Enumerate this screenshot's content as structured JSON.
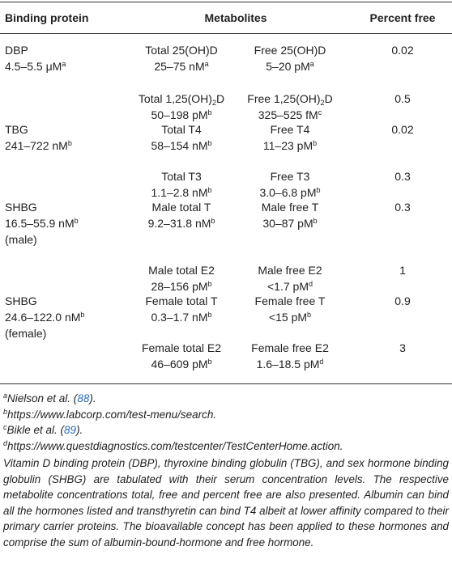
{
  "table": {
    "header": [
      "Binding protein",
      "Metabolites",
      "Percent free"
    ],
    "rows": [
      {
        "protein": [
          [
            "DBP"
          ],
          [
            "4.5–5.5 μM",
            {
              "sup": "a"
            }
          ]
        ],
        "total": [
          [
            "Total 25(OH)D"
          ],
          [
            "25–75 nM",
            {
              "sup": "a"
            }
          ]
        ],
        "free": [
          [
            "Free 25(OH)D"
          ],
          [
            "5–20 pM",
            {
              "sup": "a"
            }
          ]
        ],
        "percent": "0.02"
      },
      {
        "protein": [],
        "total": [
          [
            "Total 1,25(OH)",
            {
              "sub": "2"
            },
            "D"
          ],
          [
            "50–198 pM",
            {
              "sup": "b"
            }
          ]
        ],
        "free": [
          [
            "Free 1,25(OH)",
            {
              "sub": "2"
            },
            "D"
          ],
          [
            "325–525 fM",
            {
              "sup": "c"
            }
          ]
        ],
        "percent": "0.5"
      },
      {
        "protein": [
          [
            "TBG"
          ],
          [
            "241–722 nM",
            {
              "sup": "b"
            }
          ]
        ],
        "total": [
          [
            "Total T4"
          ],
          [
            "58–154 nM",
            {
              "sup": "b"
            }
          ]
        ],
        "free": [
          [
            "Free T4"
          ],
          [
            "11–23 pM",
            {
              "sup": "b"
            }
          ]
        ],
        "percent": "0.02"
      },
      {
        "protein": [],
        "total": [
          [
            "Total T3"
          ],
          [
            "1.1–2.8 nM",
            {
              "sup": "b"
            }
          ]
        ],
        "free": [
          [
            "Free T3"
          ],
          [
            "3.0–6.8 pM",
            {
              "sup": "b"
            }
          ]
        ],
        "percent": "0.3"
      },
      {
        "protein": [
          [
            "SHBG"
          ],
          [
            "16.5–55.9 nM",
            {
              "sup": "b"
            }
          ],
          [
            "(male)"
          ]
        ],
        "total": [
          [
            "Male total T"
          ],
          [
            "9.2–31.8 nM",
            {
              "sup": "b"
            }
          ]
        ],
        "free": [
          [
            "Male free T"
          ],
          [
            "30–87 pM",
            {
              "sup": "b"
            }
          ]
        ],
        "percent": "0.3"
      },
      {
        "protein": [],
        "total": [
          [
            "Male total E2"
          ],
          [
            "28–156 pM",
            {
              "sup": "b"
            }
          ]
        ],
        "free": [
          [
            "Male free E2"
          ],
          [
            "<1.7 pM",
            {
              "sup": "d"
            }
          ]
        ],
        "percent": "1"
      },
      {
        "protein": [
          [
            "SHBG"
          ],
          [
            "24.6–122.0 nM",
            {
              "sup": "b"
            }
          ],
          [
            "(female)"
          ]
        ],
        "total": [
          [
            "Female total T"
          ],
          [
            "0.3–1.7 nM",
            {
              "sup": "b"
            }
          ]
        ],
        "free": [
          [
            "Female free T"
          ],
          [
            "<15 pM",
            {
              "sup": "b"
            }
          ]
        ],
        "percent": "0.9"
      },
      {
        "protein": [],
        "total": [
          [
            "Female total E2"
          ],
          [
            "46–609 pM",
            {
              "sup": "b"
            }
          ]
        ],
        "free": [
          [
            "Female free E2"
          ],
          [
            "1.6–18.5 pM",
            {
              "sup": "d"
            }
          ]
        ],
        "percent": "3"
      }
    ]
  },
  "footnotes": [
    [
      {
        "sup": "a"
      },
      "Nielson et al. (",
      {
        "link": "88"
      },
      ")."
    ],
    [
      {
        "sup": "b"
      },
      "https://www.labcorp.com/test-menu/search."
    ],
    [
      {
        "sup": "c"
      },
      "Bikle et al. (",
      {
        "link": "89"
      },
      ")."
    ],
    [
      {
        "sup": "d"
      },
      "https://www.questdiagnostics.com/testcenter/TestCenterHome.action."
    ]
  ],
  "caption": "Vitamin D binding protein (DBP), thyroxine binding globulin (TBG), and sex hormone binding globulin (SHBG) are tabulated with their serum concentration levels. The respective metabolite concentrations total, free and percent free are also presented. Albumin can bind all the hormones listed and transthyretin can bind T4 albeit at lower affinity compared to their primary carrier proteins. The bioavailable concept has been applied to these hormones and comprise the sum of albumin-bound-hormone and free hormone."
}
